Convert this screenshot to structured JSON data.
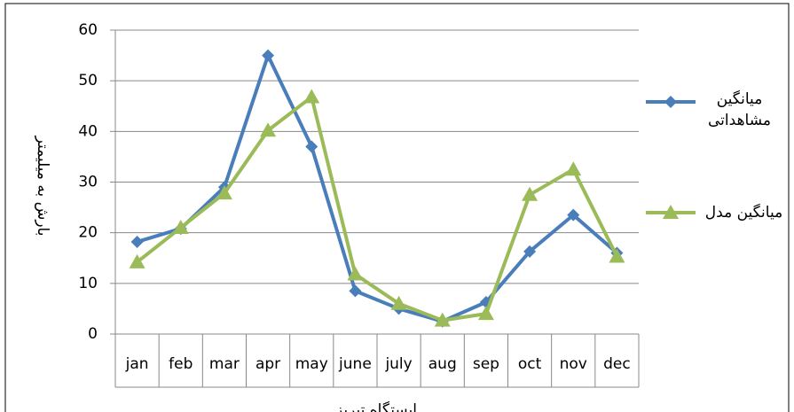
{
  "chart_data": {
    "type": "line",
    "x_label": "ایستگاه تبریز",
    "y_label": "بارش به میلیمتر",
    "categories": [
      "jan",
      "feb",
      "mar",
      "apr",
      "may",
      "june",
      "july",
      "aug",
      "sep",
      "oct",
      "nov",
      "dec"
    ],
    "series": [
      {
        "name": "میانگین مشاهداتی",
        "color": "#4a7ebb",
        "values": [
          18.2,
          20.8,
          29,
          55,
          37,
          8.5,
          5,
          2.5,
          6.3,
          16.3,
          23.5,
          16
        ]
      },
      {
        "name": "میانگین مدل",
        "color": "#9bbb59",
        "values": [
          14.2,
          21,
          27.8,
          40.2,
          46.8,
          11.8,
          6,
          2.7,
          4,
          27.5,
          32.5,
          15.3
        ]
      }
    ],
    "ylim": [
      0,
      60
    ],
    "yticks": [
      0,
      10,
      20,
      30,
      40,
      50,
      60
    ],
    "grid": true
  }
}
